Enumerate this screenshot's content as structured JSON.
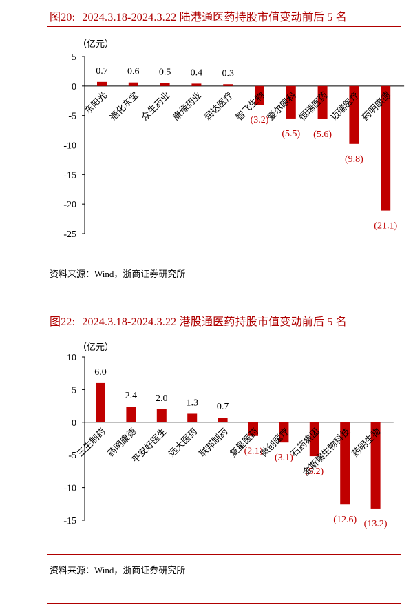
{
  "panels": [
    {
      "title_prefix": "图20:",
      "title_text": "2024.3.18-2024.3.22 陆港通医药持股市值变动前后 5 名",
      "source": "资料来源：Wind，浙商证券研究所",
      "chart_data": {
        "type": "bar",
        "unit_label": "（亿元）",
        "categories": [
          "东阳光",
          "通化东宝",
          "众生药业",
          "康缘药业",
          "润达医疗",
          "智飞生物",
          "爱尔眼科",
          "恒瑞医药",
          "迈瑞医疗",
          "药明康德"
        ],
        "values": [
          0.7,
          0.6,
          0.5,
          0.4,
          0.3,
          -3.2,
          -5.5,
          -5.6,
          -9.8,
          -21.1
        ],
        "value_labels": [
          "0.7",
          "0.6",
          "0.5",
          "0.4",
          "0.3",
          "(3.2)",
          "(5.5)",
          "(5.6)",
          "(9.8)",
          "(21.1)"
        ],
        "ylim": [
          -25,
          5
        ],
        "yticks": [
          "5",
          "0",
          "-5",
          "-10",
          "-15",
          "-20",
          "-25"
        ],
        "bar_color": "#c00000",
        "neg_label_color": "#c00000"
      }
    },
    {
      "title_prefix": "图22:",
      "title_text": "2024.3.18-2024.3.22 港股通医药持股市值变动前后 5 名",
      "source": "资料来源：Wind，浙商证券研究所",
      "chart_data": {
        "type": "bar",
        "unit_label": "（亿元）",
        "categories": [
          "三生制药",
          "药明康德",
          "平安好医生",
          "远大医药",
          "联邦制药",
          "复星医药",
          "微创医疗",
          "石药集团",
          "金斯瑞生物科技",
          "药明生物"
        ],
        "values": [
          6.0,
          2.4,
          2.0,
          1.3,
          0.7,
          -2.1,
          -3.1,
          -5.2,
          -12.6,
          -13.2
        ],
        "value_labels": [
          "6.0",
          "2.4",
          "2.0",
          "1.3",
          "0.7",
          "(2.1)",
          "(3.1)",
          "(5.2)",
          "(12.6)",
          "(13.2)"
        ],
        "ylim": [
          -15,
          10
        ],
        "yticks": [
          "10",
          "5",
          "0",
          "-5",
          "-10",
          "-15"
        ],
        "bar_color": "#c00000",
        "neg_label_color": "#c00000"
      }
    }
  ]
}
